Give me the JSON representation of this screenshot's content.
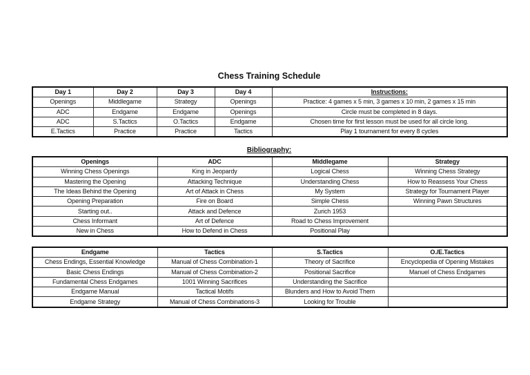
{
  "title": "Chess Training Schedule",
  "schedule": {
    "headers": [
      "Day 1",
      "Day 2",
      "Day 3",
      "Day 4",
      "Instructions:"
    ],
    "rows": [
      [
        "Openings",
        "Middlegame",
        "Strategy",
        "Openings",
        "Practice: 4 games x 5 min, 3 games x 10 min, 2 games x 15 min"
      ],
      [
        "ADC",
        "Endgame",
        "Endgame",
        "Openings",
        "Circle must be completed in 8 days."
      ],
      [
        "ADC",
        "S.Tactics",
        "O.Tactics",
        "Endgame",
        "Chosen time for first lesson must be used for all circle long."
      ],
      [
        "E.Tactics",
        "Practice",
        "Practice",
        "Tactics",
        "Play 1 tournament for every 8 cycles"
      ]
    ]
  },
  "bibliography_label": "Bibliography:",
  "biblio1": {
    "headers": [
      "Openings",
      "ADC",
      "Middlegame",
      "Strategy"
    ],
    "rows": [
      [
        "Winning Chess Openings",
        "King in Jeopardy",
        "Logical Chess",
        "Winning Chess Strategy"
      ],
      [
        "Mastering the Opening",
        "Attacking Technique",
        "Understanding Chess",
        "How to Reassess Your Chess"
      ],
      [
        "The Ideas Behind the Opening",
        "Art of Attack in Chess",
        "My System",
        "Strategy for Tournament Player"
      ],
      [
        "Opening Preparation",
        "Fire on Board",
        "Simple Chess",
        "Winning Pawn Structures"
      ],
      [
        "Starting out..",
        "Attack and Defence",
        "Zurich 1953",
        ""
      ],
      [
        "Chess Informant",
        "Art of Defence",
        "Road to Chess Improvement",
        ""
      ],
      [
        "New in Chess",
        "How to Defend in Chess",
        "Positional Play",
        ""
      ]
    ]
  },
  "biblio2": {
    "headers": [
      "Endgame",
      "Tactics",
      "S.Tactics",
      "O./E.Tactics"
    ],
    "rows": [
      [
        "Chess Endings, Essential Knowledge",
        "Manual of Chess Combination-1",
        "Theory of Sacrifice",
        "Encyclopedia of Opening Mistakes"
      ],
      [
        "Basic Chess Endings",
        "Manual of Chess Combination-2",
        "Positional Sacrifice",
        "Manuel of Chess Endgames"
      ],
      [
        "Fundamental Chess Endgames",
        "1001 Winning Sacrifices",
        "Understanding the Sacrifice",
        ""
      ],
      [
        "Endgame Manual",
        "Tactical Motifs",
        "Blunders and How to Avoid Them",
        ""
      ],
      [
        "Endgame Strategy",
        "Manual of Chess Combinations-3",
        "Looking for Trouble",
        ""
      ]
    ]
  }
}
